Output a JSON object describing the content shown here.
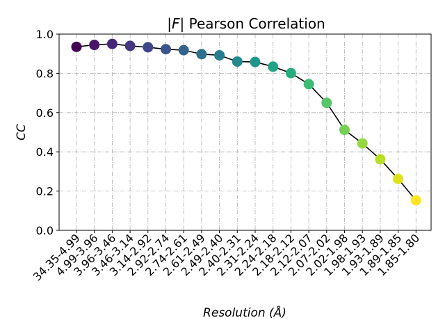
{
  "chart_data": {
    "type": "scatter",
    "title_prefix": "|",
    "title_var": "F",
    "title_suffix": "| Pearson Correlation",
    "xlabel": "Resolution (Å)",
    "ylabel": "CC",
    "ylim": [
      0,
      1.0
    ],
    "yticks": [
      "0.0",
      "0.2",
      "0.4",
      "0.6",
      "0.8",
      "1.0"
    ],
    "grid": true,
    "line_color": "#000000",
    "categories": [
      "34.35-4.99",
      "4.99-3.96",
      "3.96-3.46",
      "3.46-3.14",
      "3.14-2.92",
      "2.92-2.74",
      "2.74-2.61",
      "2.61-2.49",
      "2.49-2.40",
      "2.40-2.31",
      "2.31-2.24",
      "2.24-2.18",
      "2.18-2.12",
      "2.12-2.07",
      "2.07-2.02",
      "2.02-1.98",
      "1.98-1.93",
      "1.93-1.89",
      "1.89-1.85",
      "1.85-1.80"
    ],
    "values": [
      0.935,
      0.945,
      0.95,
      0.94,
      0.933,
      0.923,
      0.918,
      0.898,
      0.892,
      0.86,
      0.858,
      0.834,
      0.801,
      0.745,
      0.65,
      0.512,
      0.443,
      0.362,
      0.262,
      0.153
    ],
    "point_colors": [
      "#440154",
      "#481567",
      "#482677",
      "#453781",
      "#3f4788",
      "#39558c",
      "#32648e",
      "#2d718e",
      "#287d8e",
      "#238a8d",
      "#1f968b",
      "#20a386",
      "#29af7f",
      "#3cbc75",
      "#56c667",
      "#75d054",
      "#95d840",
      "#bade28",
      "#dde318",
      "#fde725"
    ]
  }
}
